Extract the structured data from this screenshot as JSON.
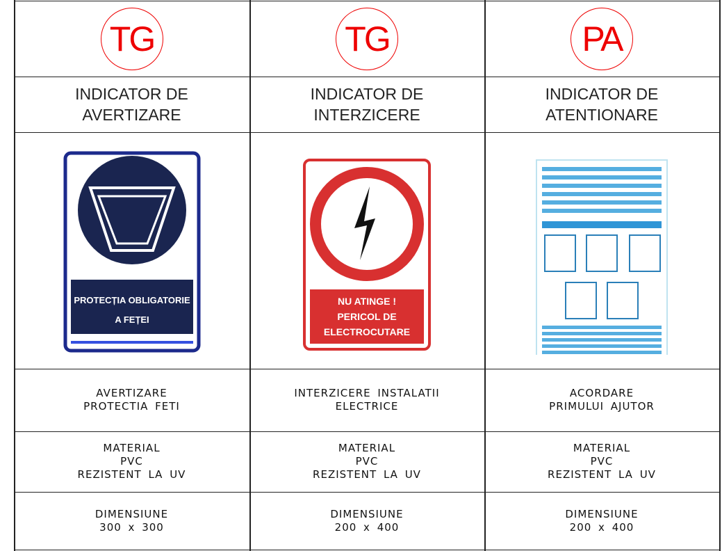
{
  "columns": [
    {
      "code": "TG",
      "title": [
        "INDICATOR DE",
        "AVERTIZARE"
      ],
      "sign_text": [
        "PROTECȚIA OBLIGATORIE",
        "A FEȚEI"
      ],
      "description": [
        "AVERTIZARE",
        "PROTECTIA FETI"
      ],
      "material": [
        "MATERIAL",
        "PVC",
        "REZISTENT LA UV"
      ],
      "dimension": [
        "DIMENSIUNE",
        "300 x 300"
      ]
    },
    {
      "code": "TG",
      "title": [
        "INDICATOR DE",
        "INTERZICERE"
      ],
      "sign_text": [
        "NU ATINGE !",
        "PERICOL DE",
        "ELECTROCUTARE"
      ],
      "description": [
        "INTERZICERE INSTALATII",
        "ELECTRICE"
      ],
      "material": [
        "MATERIAL",
        "PVC",
        "REZISTENT LA UV"
      ],
      "dimension": [
        "DIMENSIUNE",
        "200 x 400"
      ]
    },
    {
      "code": "PA",
      "title": [
        "INDICATOR DE",
        "ATENTIONARE"
      ],
      "sign_text": [],
      "description": [
        "ACORDARE",
        "PRIMULUI AJUTOR"
      ],
      "material": [
        "MATERIAL",
        "PVC",
        "REZISTENT LA UV"
      ],
      "dimension": [
        "DIMENSIUNE",
        "200 x 400"
      ]
    }
  ]
}
